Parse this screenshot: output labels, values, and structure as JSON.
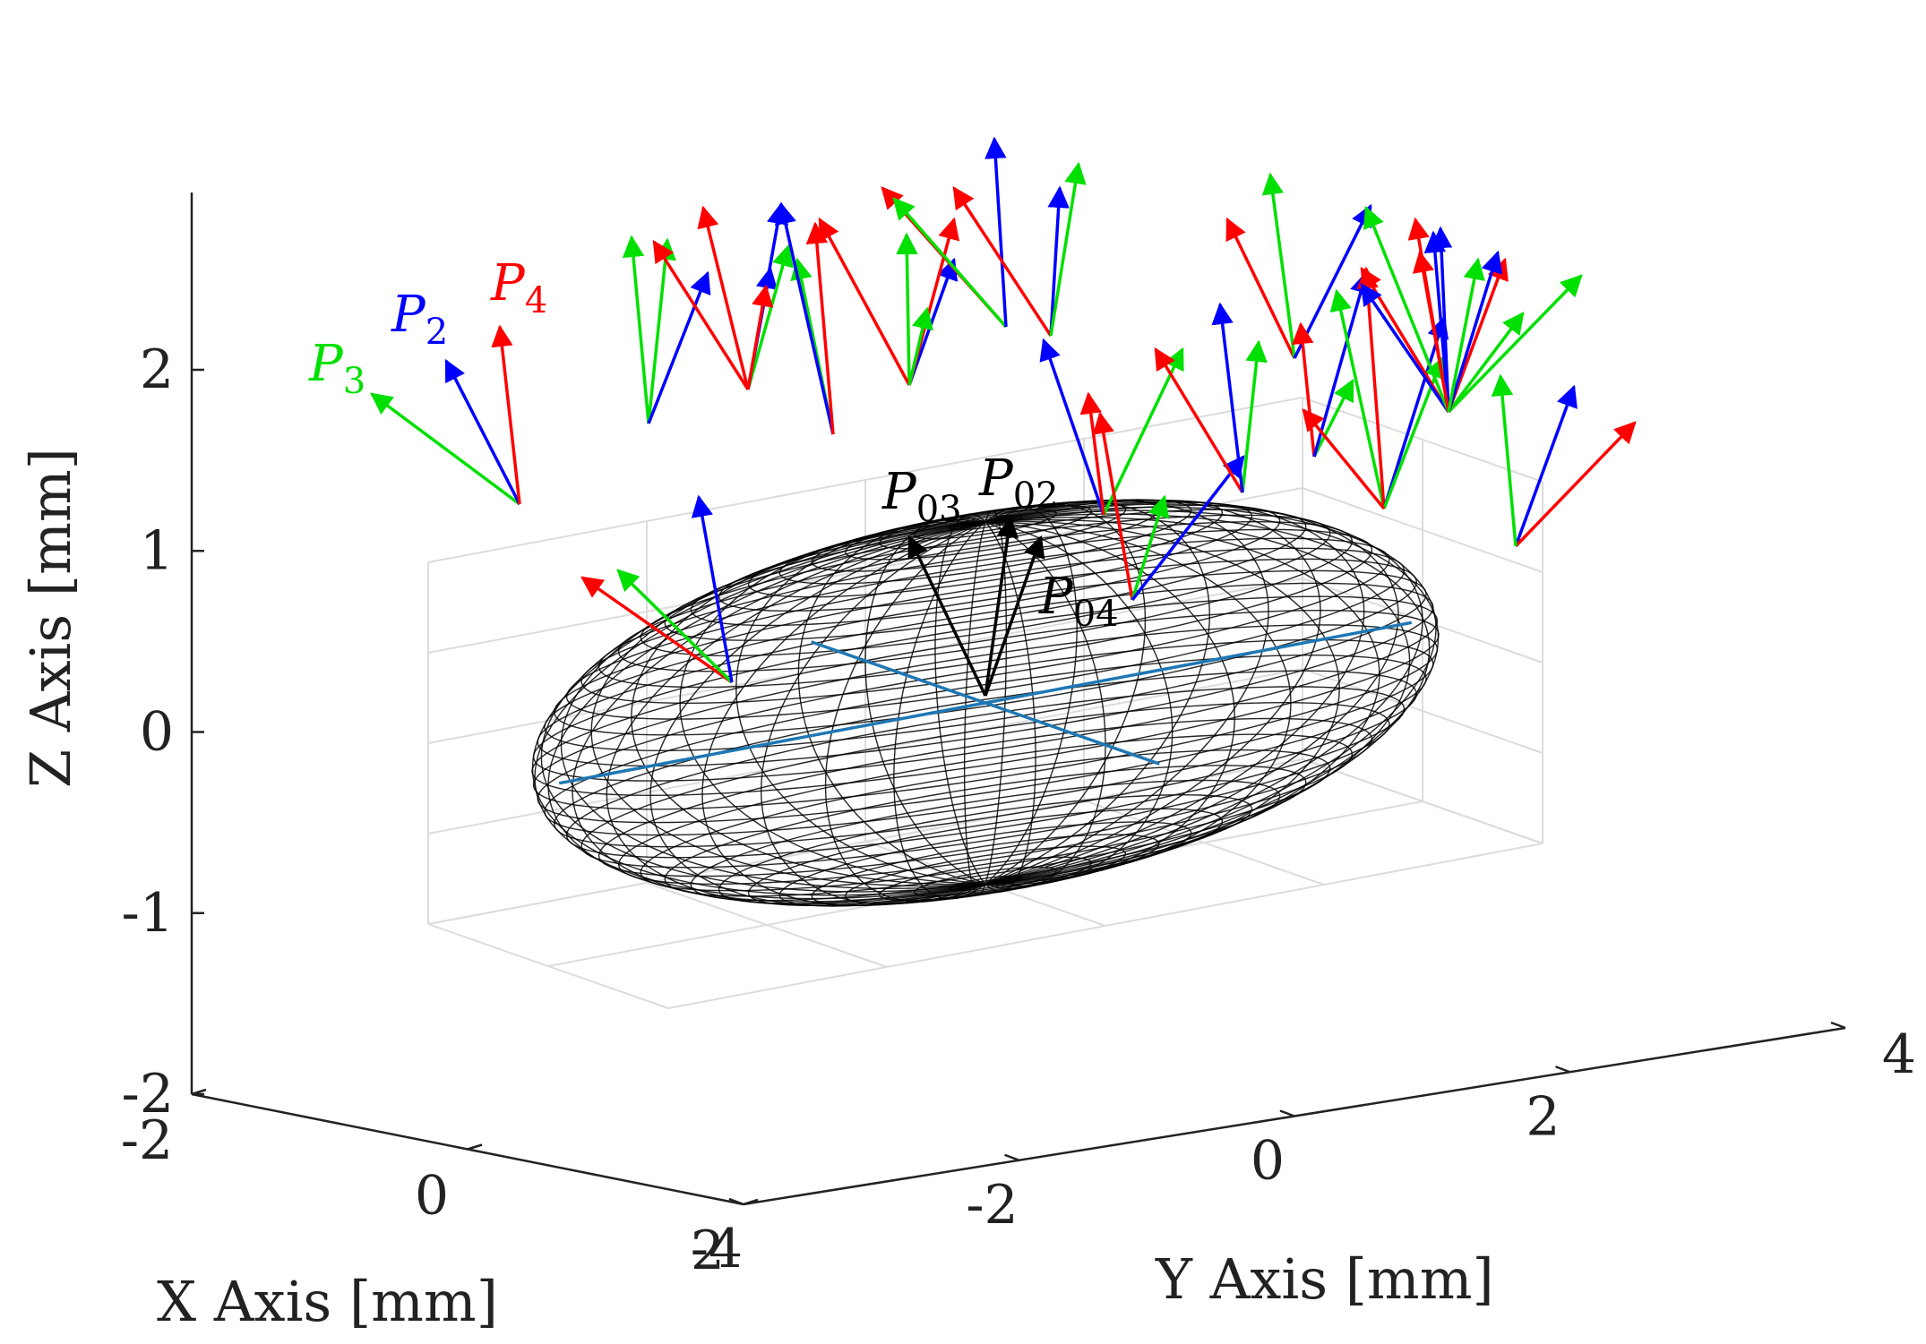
{
  "chart_data": {
    "type": "3d-wireframe",
    "xlabel": "X Axis [mm]",
    "ylabel": "Y Axis [mm]",
    "zlabel": "Z Axis [mm]",
    "xlim": [
      -2,
      2
    ],
    "ylim": [
      -4,
      4
    ],
    "zlim": [
      -2,
      2
    ],
    "x_ticks": [
      "-2",
      "0",
      "2"
    ],
    "y_ticks": [
      "-4",
      "-2",
      "0",
      "2",
      "4"
    ],
    "z_ticks": [
      "-2",
      "-1",
      "0",
      "1",
      "2"
    ],
    "grid": true,
    "surface": {
      "shape": "ellipsoid",
      "semi_axes": {
        "x": 2,
        "y": 4,
        "z": 2
      },
      "rendering": "black wireframe mesh"
    },
    "center_axes_color": "#1f77b4",
    "label_colors": {
      "P2": "#0000ff",
      "P3": "#00e000",
      "P4": "#ff0000",
      "P0": "#000000"
    },
    "labels": {
      "p2_main": "P",
      "p2_sub": "2",
      "p3_main": "P",
      "p3_sub": "3",
      "p4_main": "P",
      "p4_sub": "4",
      "p02_main": "P",
      "p02_sub": "02",
      "p03_main": "P",
      "p03_sub": "03",
      "p04_main": "P",
      "p04_sub": "04"
    }
  }
}
